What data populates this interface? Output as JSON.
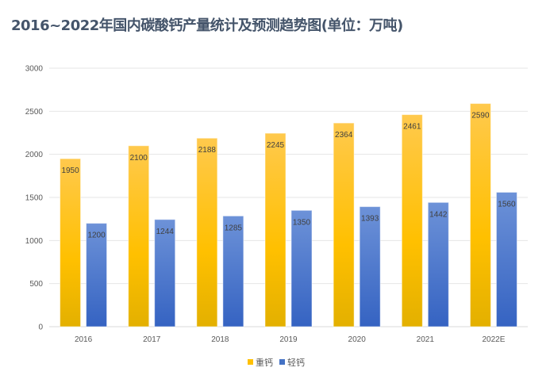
{
  "chart_data": {
    "type": "bar",
    "title": "2016~2022年国内碳酸钙产量统计及预测趋势图(单位：万吨)",
    "categories": [
      "2016",
      "2017",
      "2018",
      "2019",
      "2020",
      "2021",
      "2022E"
    ],
    "series": [
      {
        "name": "重钙",
        "values": [
          1950,
          2100,
          2188,
          2245,
          2364,
          2461,
          2590
        ],
        "color": "#ffc000"
      },
      {
        "name": "轻钙",
        "values": [
          1200,
          1244,
          1285,
          1350,
          1393,
          1442,
          1560
        ],
        "color": "#4472c4"
      }
    ],
    "xlabel": "",
    "ylabel": "",
    "ylim": [
      0,
      3000
    ],
    "yticks": [
      0,
      500,
      1000,
      1500,
      2000,
      2500,
      3000
    ],
    "grid": true,
    "legend": "bottom"
  }
}
